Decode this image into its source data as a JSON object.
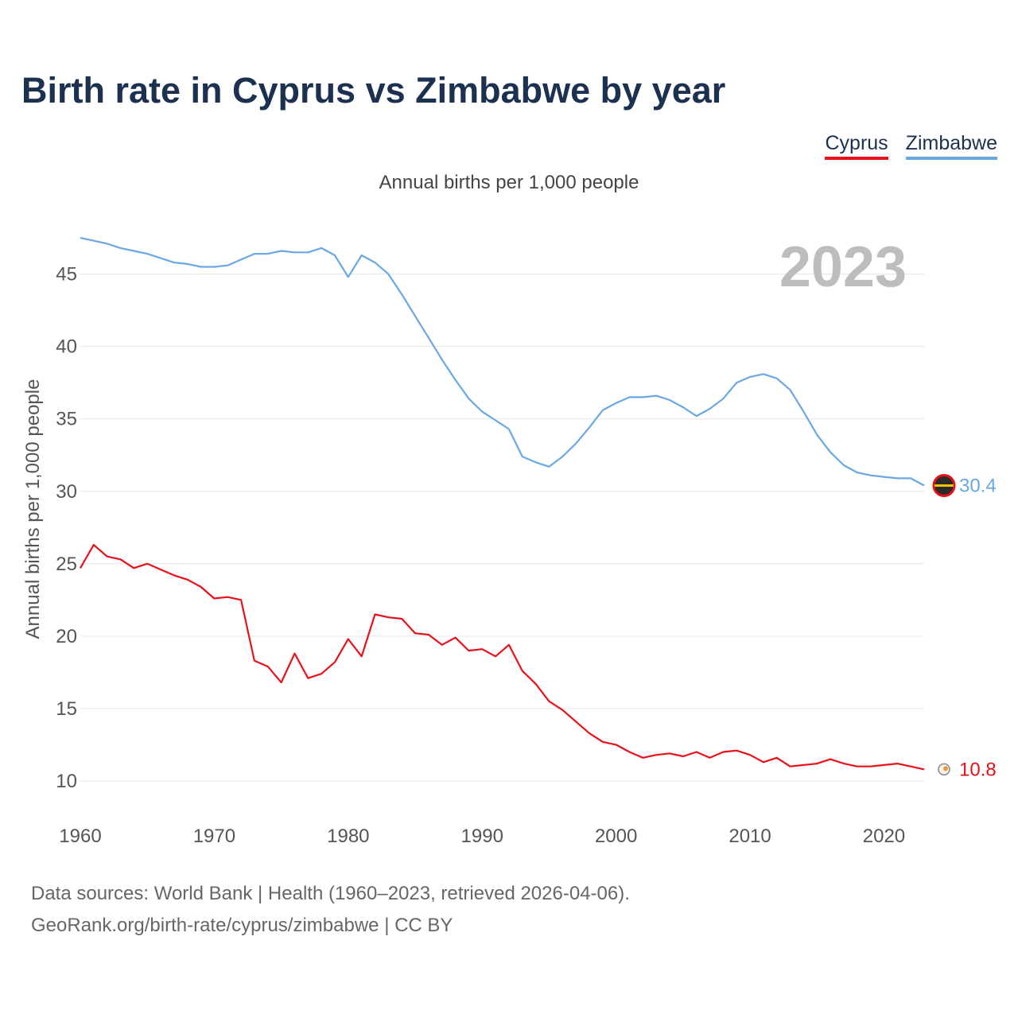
{
  "title": "Birth rate in Cyprus vs Zimbabwe by year",
  "legend": [
    {
      "name": "Cyprus",
      "color": "#e8101a"
    },
    {
      "name": "Zimbabwe",
      "color": "#6aa8e2"
    }
  ],
  "footer": {
    "line1": "Data sources: World Bank | Health (1960–2023, retrieved 2026-04-06).",
    "line2": "GeoRank.org/birth-rate/cyprus/zimbabwe | CC BY"
  },
  "chart_data": {
    "type": "line",
    "title": "Birth rate in Cyprus vs Zimbabwe by year",
    "subtitle": "Annual births per 1,000 people",
    "ylabel": "Annual births per 1,000 people",
    "xlabel": "",
    "year_label": "2023",
    "xlim": [
      1960,
      2023
    ],
    "ylim": [
      7.8,
      48
    ],
    "xticks": [
      1960,
      1970,
      1980,
      1990,
      2000,
      2010,
      2020
    ],
    "yticks": [
      10,
      15,
      20,
      25,
      30,
      35,
      40,
      45
    ],
    "grid": true,
    "legend_position": "top-right",
    "x": [
      1960,
      1961,
      1962,
      1963,
      1964,
      1965,
      1966,
      1967,
      1968,
      1969,
      1970,
      1971,
      1972,
      1973,
      1974,
      1975,
      1976,
      1977,
      1978,
      1979,
      1980,
      1981,
      1982,
      1983,
      1984,
      1985,
      1986,
      1987,
      1988,
      1989,
      1990,
      1991,
      1992,
      1993,
      1994,
      1995,
      1996,
      1997,
      1998,
      1999,
      2000,
      2001,
      2002,
      2003,
      2004,
      2005,
      2006,
      2007,
      2008,
      2009,
      2010,
      2011,
      2012,
      2013,
      2014,
      2015,
      2016,
      2017,
      2018,
      2019,
      2020,
      2021,
      2022,
      2023
    ],
    "series": [
      {
        "name": "Zimbabwe",
        "color": "#6aa8e2",
        "end_label": "30.4",
        "values": [
          47.5,
          47.3,
          47.1,
          46.8,
          46.6,
          46.4,
          46.1,
          45.8,
          45.7,
          45.5,
          45.5,
          45.6,
          46.0,
          46.4,
          46.4,
          46.6,
          46.5,
          46.5,
          46.8,
          46.3,
          44.8,
          46.3,
          45.8,
          45.0,
          43.6,
          42.1,
          40.6,
          39.1,
          37.7,
          36.4,
          35.5,
          34.9,
          34.3,
          32.4,
          32.0,
          31.7,
          32.4,
          33.3,
          34.4,
          35.6,
          36.1,
          36.5,
          36.5,
          36.6,
          36.3,
          35.8,
          35.2,
          35.7,
          36.4,
          37.5,
          37.9,
          38.1,
          37.8,
          37.0,
          35.5,
          33.9,
          32.7,
          31.8,
          31.3,
          31.1,
          31.0,
          30.9,
          30.9,
          30.4
        ]
      },
      {
        "name": "Cyprus",
        "color": "#e8101a",
        "end_label": "10.8",
        "values": [
          24.7,
          26.3,
          25.5,
          25.3,
          24.7,
          25.0,
          24.6,
          24.2,
          23.9,
          23.4,
          22.6,
          22.7,
          22.5,
          18.3,
          17.9,
          16.8,
          18.8,
          17.1,
          17.4,
          18.2,
          19.8,
          18.6,
          21.5,
          21.3,
          21.2,
          20.2,
          20.1,
          19.4,
          19.9,
          19.0,
          19.1,
          18.6,
          19.4,
          17.6,
          16.7,
          15.5,
          14.9,
          14.1,
          13.3,
          12.7,
          12.5,
          12.0,
          11.6,
          11.8,
          11.9,
          11.7,
          12.0,
          11.6,
          12.0,
          12.1,
          11.8,
          11.3,
          11.6,
          11.0,
          11.1,
          11.2,
          11.5,
          11.2,
          11.0,
          11.0,
          11.1,
          11.2,
          11.0,
          10.8
        ]
      }
    ]
  }
}
